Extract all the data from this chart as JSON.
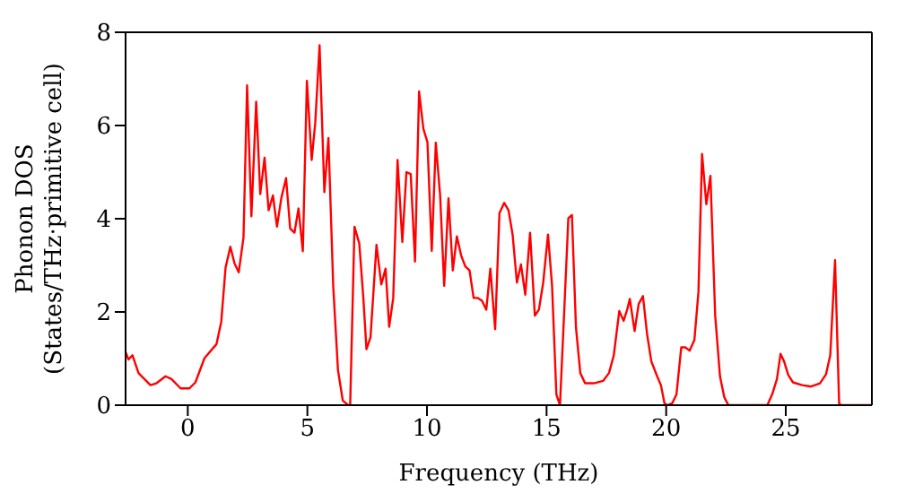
{
  "chart_data": {
    "type": "line",
    "xlabel": "Frequency (THz)",
    "ylabel": "Phonon DOS\n(States/THz·primitive cell)",
    "xlim": [
      -2.6,
      28.6
    ],
    "xticks": [
      0,
      5,
      10,
      15,
      20,
      25
    ],
    "ylim": [
      0,
      8
    ],
    "yticks": [
      0,
      2,
      4,
      6,
      8
    ],
    "legend": false,
    "marker": "none",
    "line_style": "solid",
    "series": [
      {
        "color": "#ff0000",
        "x": [
          -2.6,
          -2.48,
          -2.31,
          -2.06,
          -1.56,
          -1.31,
          -0.93,
          -0.68,
          -0.3,
          0.07,
          0.32,
          0.7,
          1.2,
          1.4,
          1.58,
          1.78,
          1.95,
          2.13,
          2.33,
          2.48,
          2.66,
          2.86,
          3.03,
          3.21,
          3.38,
          3.56,
          3.73,
          3.91,
          4.11,
          4.28,
          4.46,
          4.63,
          4.81,
          4.98,
          5.18,
          5.33,
          5.51,
          5.71,
          5.88,
          6.08,
          6.28,
          6.48,
          6.71,
          6.79,
          6.97,
          7.17,
          7.34,
          7.47,
          7.64,
          7.89,
          8.09,
          8.27,
          8.42,
          8.59,
          8.77,
          8.97,
          9.14,
          9.32,
          9.5,
          9.67,
          9.85,
          10.02,
          10.2,
          10.37,
          10.55,
          10.72,
          10.9,
          11.08,
          11.25,
          11.43,
          11.6,
          11.78,
          11.95,
          12.13,
          12.3,
          12.48,
          12.65,
          12.85,
          13.03,
          13.23,
          13.41,
          13.58,
          13.76,
          13.93,
          14.11,
          14.31,
          14.51,
          14.68,
          14.86,
          15.06,
          15.23,
          15.41,
          15.56,
          15.73,
          15.91,
          16.06,
          16.23,
          16.41,
          16.61,
          16.98,
          17.36,
          17.61,
          17.81,
          18.04,
          18.22,
          18.37,
          18.48,
          18.68,
          18.85,
          19.03,
          19.2,
          19.38,
          19.6,
          19.78,
          19.93,
          20.05,
          20.25,
          20.43,
          20.63,
          20.8,
          20.98,
          21.18,
          21.35,
          21.5,
          21.68,
          21.85,
          22.05,
          22.25,
          22.43,
          22.6,
          24.23,
          24.43,
          24.63,
          24.78,
          24.93,
          25.1,
          25.3,
          25.68,
          26.06,
          26.43,
          26.68,
          26.86,
          27.06,
          27.23,
          27.31,
          28.6
        ],
        "values": [
          1.14,
          0.98,
          1.07,
          0.69,
          0.43,
          0.47,
          0.62,
          0.56,
          0.36,
          0.36,
          0.49,
          1.01,
          1.31,
          1.79,
          2.95,
          3.4,
          3.05,
          2.85,
          3.6,
          6.86,
          4.05,
          6.51,
          4.53,
          5.31,
          4.18,
          4.5,
          3.83,
          4.44,
          4.87,
          3.79,
          3.7,
          4.22,
          3.3,
          6.96,
          5.26,
          6.06,
          7.72,
          4.57,
          5.73,
          2.56,
          0.75,
          0.1,
          0,
          0,
          3.83,
          3.47,
          2.3,
          1.2,
          1.46,
          3.44,
          2.59,
          2.93,
          1.68,
          2.3,
          5.26,
          3.5,
          5.0,
          4.96,
          3.08,
          6.73,
          5.93,
          5.64,
          3.31,
          5.63,
          4.5,
          2.56,
          4.44,
          2.89,
          3.62,
          3.21,
          2.98,
          2.89,
          2.3,
          2.3,
          2.24,
          2.05,
          2.93,
          1.63,
          4.12,
          4.34,
          4.18,
          3.66,
          2.63,
          3.02,
          2.37,
          3.7,
          1.92,
          2.05,
          2.63,
          3.66,
          2.56,
          0.23,
          0,
          1.92,
          4.01,
          4.08,
          1.66,
          0.69,
          0.47,
          0.47,
          0.52,
          0.69,
          1.07,
          2.02,
          1.81,
          2.05,
          2.28,
          1.59,
          2.17,
          2.34,
          1.53,
          0.94,
          0.65,
          0.43,
          0.04,
          0,
          0.04,
          0.23,
          1.24,
          1.24,
          1.17,
          1.4,
          2.43,
          5.39,
          4.31,
          4.92,
          1.92,
          0.62,
          0.17,
          0,
          0,
          0.23,
          0.56,
          1.1,
          0.94,
          0.65,
          0.49,
          0.43,
          0.4,
          0.47,
          0.66,
          1.07,
          3.11,
          0.04,
          0,
          0
        ]
      }
    ]
  }
}
